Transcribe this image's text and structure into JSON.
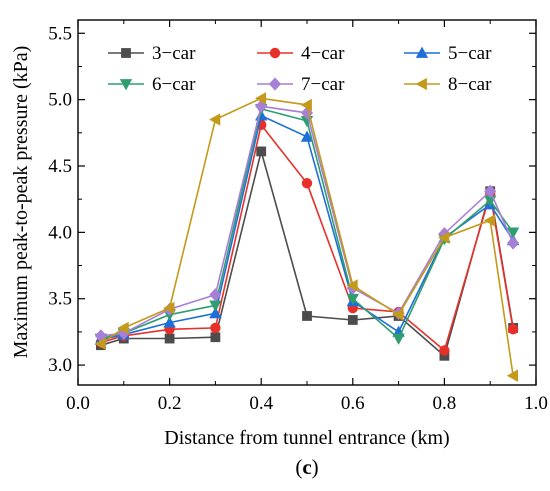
{
  "chart_data": {
    "type": "line",
    "panel_label": "c",
    "xlabel": "Distance from tunnel entrance (km)",
    "ylabel": "Maximum peak-to-peak pressure (kPa)",
    "xlim": [
      0.0,
      1.0
    ],
    "ylim": [
      2.85,
      5.6
    ],
    "xticks": [
      "0.0",
      "0.2",
      "0.4",
      "0.6",
      "0.8",
      "1.0"
    ],
    "yticks": [
      "3.0",
      "3.5",
      "4.0",
      "4.5",
      "5.0",
      "5.5"
    ],
    "grid": false,
    "legend_position": "top",
    "x": [
      0.05,
      0.1,
      0.2,
      0.3,
      0.4,
      0.5,
      0.6,
      0.7,
      0.8,
      0.9,
      0.95
    ],
    "series": [
      {
        "name": "3−car",
        "color": "#4d4d4d",
        "marker": "square",
        "values": [
          3.15,
          3.2,
          3.2,
          3.21,
          4.61,
          3.37,
          3.34,
          3.37,
          3.07,
          4.31,
          3.28
        ]
      },
      {
        "name": "4−car",
        "color": "#e8302a",
        "marker": "circle",
        "values": [
          3.17,
          3.22,
          3.27,
          3.28,
          4.81,
          4.37,
          3.43,
          3.4,
          3.11,
          4.29,
          3.27
        ]
      },
      {
        "name": "5−car",
        "color": "#1e6fd9",
        "marker": "triangle-up",
        "values": [
          3.19,
          3.23,
          3.32,
          3.39,
          4.88,
          4.72,
          3.48,
          3.25,
          3.96,
          4.21,
          3.94
        ]
      },
      {
        "name": "6−car",
        "color": "#2e9e70",
        "marker": "triangle-down",
        "values": [
          3.2,
          3.24,
          3.38,
          3.45,
          4.93,
          4.84,
          3.5,
          3.2,
          3.95,
          4.24,
          4.0
        ]
      },
      {
        "name": "7−car",
        "color": "#a77fd6",
        "marker": "diamond",
        "values": [
          3.22,
          3.24,
          3.42,
          3.53,
          4.95,
          4.9,
          3.58,
          3.39,
          3.99,
          4.31,
          3.92
        ]
      },
      {
        "name": "8−car",
        "color": "#c49a1a",
        "marker": "triangle-left",
        "values": [
          3.16,
          3.28,
          3.43,
          4.85,
          5.01,
          4.96,
          3.6,
          3.38,
          3.96,
          4.09,
          2.92
        ]
      }
    ]
  }
}
